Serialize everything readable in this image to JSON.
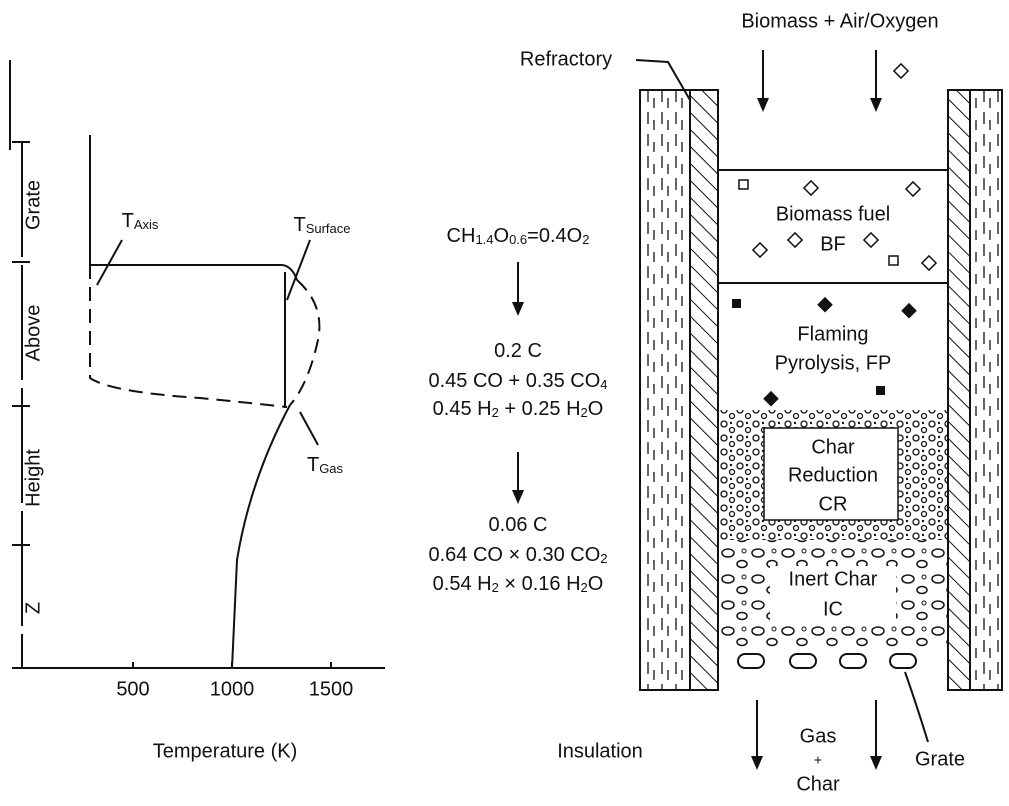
{
  "plot": {
    "axis_segments": [
      "Z",
      "Height",
      "Above",
      "Grate"
    ],
    "xticks": [
      500,
      1000,
      1500
    ],
    "xlabel": "Temperature (K)",
    "curves": {
      "axis": [
        "T",
        "Axis"
      ],
      "surface": [
        "T",
        "Surface"
      ],
      "gas": [
        "T",
        "Gas"
      ]
    }
  },
  "reactions": {
    "feed": [
      "CH",
      "1.4",
      "O",
      "0.6",
      "=0.4O",
      "2"
    ],
    "stage1": [
      [
        "0.2 C"
      ],
      [
        "0.45 CO + 0.35 CO",
        "4"
      ],
      [
        "0.45 H",
        "2",
        " + 0.25 H",
        "2",
        "O"
      ]
    ],
    "stage2": [
      [
        "0.06 C"
      ],
      [
        "0.64 CO × 0.30 CO",
        "2"
      ],
      [
        "0.54 H",
        "2",
        " × 0.16 H",
        "2",
        "O"
      ]
    ]
  },
  "reactor": {
    "inlet": "Biomass + Air/Oxygen",
    "wall": "Refractory",
    "zones": [
      [
        "Biomass fuel",
        "BF"
      ],
      [
        "Flaming",
        "Pyrolysis, FP"
      ],
      [
        "Char",
        "Reduction",
        "CR"
      ],
      [
        "Inert Char",
        "IC"
      ]
    ],
    "insulation": "Insulation",
    "outlet": [
      "Gas",
      "+",
      "Char"
    ],
    "grate": "Grate"
  }
}
